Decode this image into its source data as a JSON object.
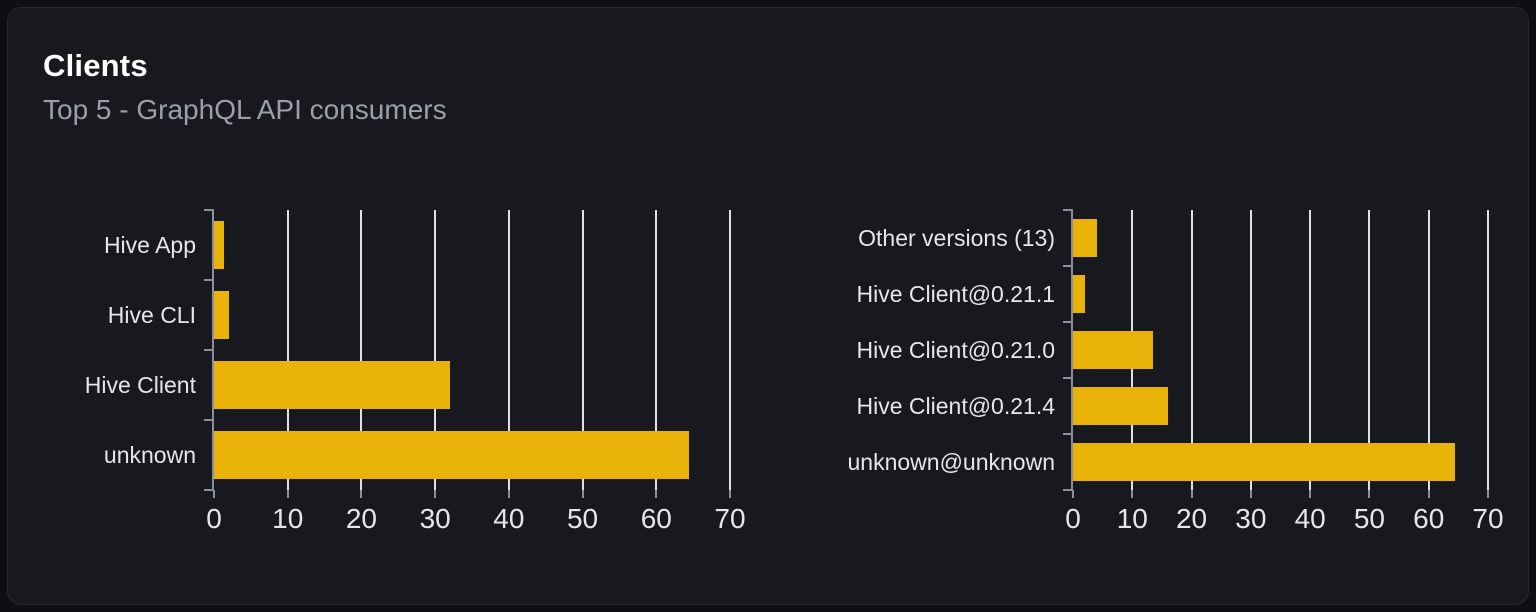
{
  "panel": {
    "title": "Clients",
    "subtitle": "Top 5 - GraphQL API consumers"
  },
  "colors": {
    "bar": "#e9b208",
    "gridline": "#dde1ea",
    "axis": "#8a8f99",
    "label_text": "#e4e6e9",
    "subtitle_text": "#9aa0a8",
    "panel_background": "#17191e",
    "page_background": "#0e0f12",
    "panel_border": "#26282d"
  },
  "chart_data": [
    {
      "type": "bar",
      "orientation": "horizontal",
      "title": "",
      "categories": [
        "Hive App",
        "Hive CLI",
        "Hive Client",
        "unknown"
      ],
      "values": [
        1.4,
        2,
        32,
        64.5
      ],
      "xlim": [
        0,
        70
      ],
      "xticks": [
        0,
        10,
        20,
        30,
        40,
        50,
        60,
        70
      ],
      "grid": true,
      "legend": false
    },
    {
      "type": "bar",
      "orientation": "horizontal",
      "title": "",
      "categories": [
        "Other versions (13)",
        "Hive Client@0.21.1",
        "Hive Client@0.21.0",
        "Hive Client@0.21.4",
        "unknown@unknown"
      ],
      "values": [
        4,
        2,
        13.5,
        16,
        64.5
      ],
      "xlim": [
        0,
        70
      ],
      "xticks": [
        0,
        10,
        20,
        30,
        40,
        50,
        60,
        70
      ],
      "grid": true,
      "legend": false
    }
  ]
}
